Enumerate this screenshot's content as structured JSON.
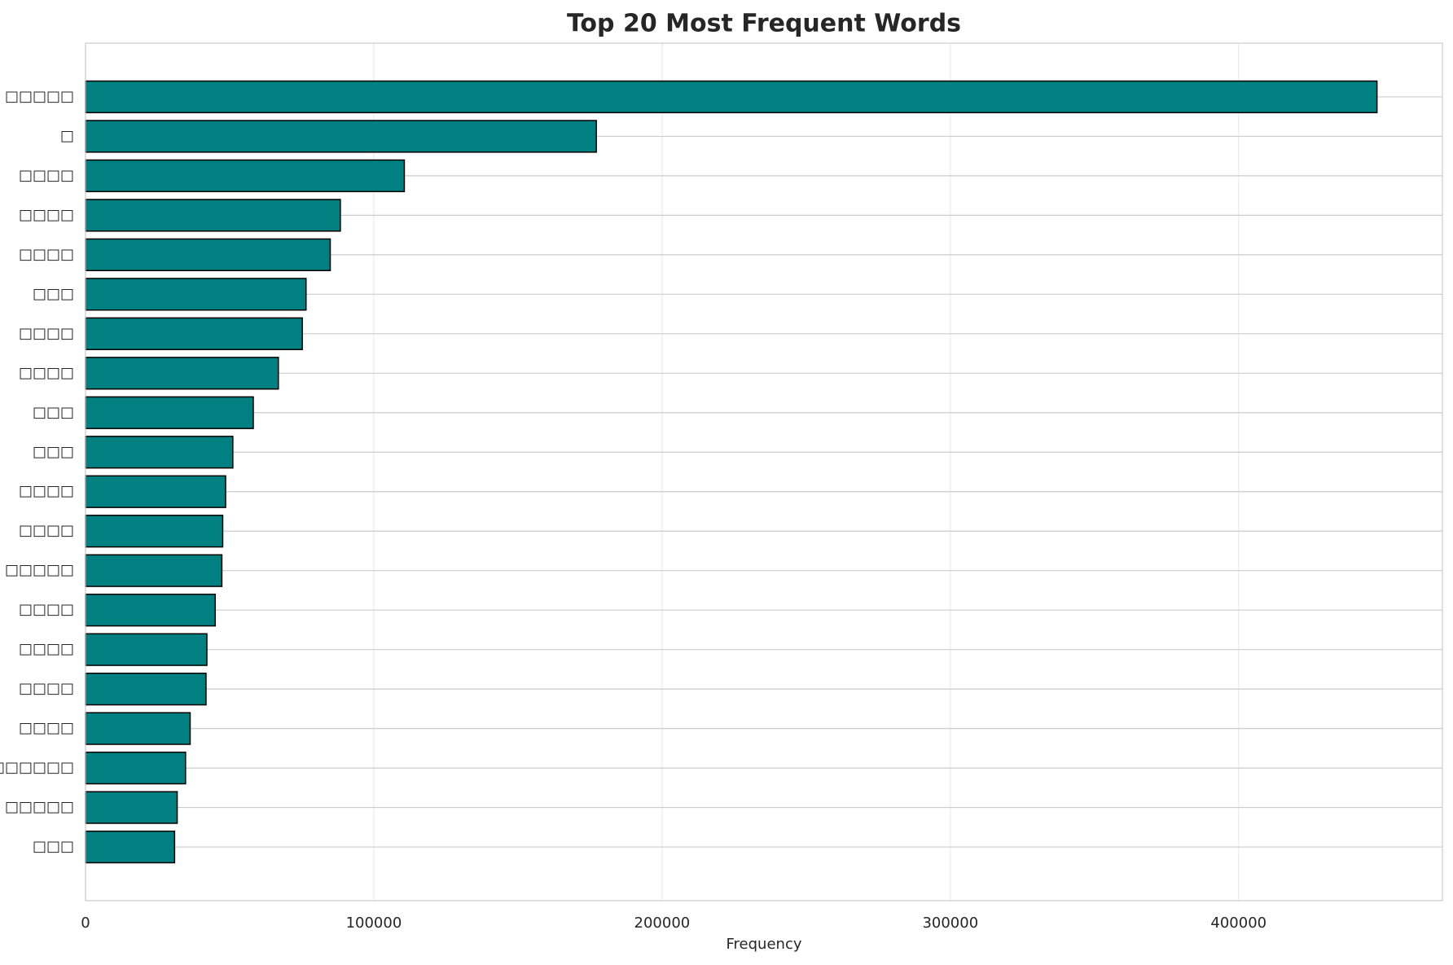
{
  "chart_data": {
    "type": "barh",
    "title": "Top 20 Most Frequent Words",
    "x_label": "Frequency",
    "categories": [
      "□□□□□",
      "□",
      "□□□□",
      "□□□□",
      "□□□□",
      "□□□",
      "□□□□",
      "□□□□",
      "□□□",
      "□□□",
      "□□□□",
      "□□□□",
      "□□□□□",
      "□□□□",
      "□□□□",
      "□□□□",
      "□□□□",
      "□□□□□□",
      "□□□□□",
      "□□□"
    ],
    "values": [
      448000,
      177200,
      110600,
      88400,
      84900,
      76500,
      75200,
      66900,
      58200,
      51100,
      48600,
      47600,
      47300,
      45000,
      42100,
      41800,
      36300,
      34700,
      31800,
      30900
    ],
    "color": "#008080",
    "edge_color": "#000000",
    "xlim": [
      0,
      470700
    ],
    "xticks": [
      0,
      100000,
      200000,
      300000,
      400000
    ],
    "grid": true
  }
}
